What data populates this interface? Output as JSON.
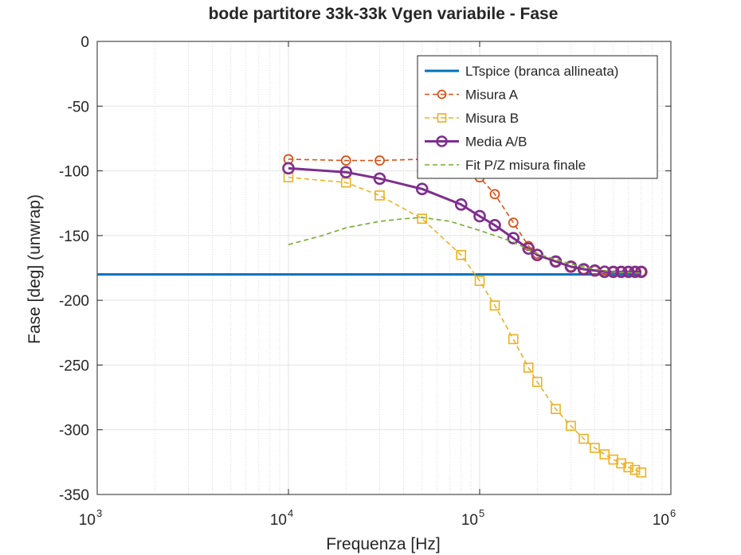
{
  "chart_data": {
    "type": "line",
    "title": "bode partitore 33k-33k Vgen variabile - Fase",
    "xlabel": "Frequenza [Hz]",
    "ylabel": "Fase [deg] (unwrap)",
    "xscale": "log",
    "xlim": [
      1000,
      1000000
    ],
    "ylim": [
      -350,
      0
    ],
    "yticks": [
      0,
      -50,
      -100,
      -150,
      -200,
      -250,
      -300,
      -350
    ],
    "ytick_labels": [
      "0",
      "-50",
      "-100",
      "-150",
      "-200",
      "-250",
      "-300",
      "-350"
    ],
    "xtick_labels": [
      {
        "base": "10",
        "exp": "3",
        "value": 1000
      },
      {
        "base": "10",
        "exp": "4",
        "value": 10000
      },
      {
        "base": "10",
        "exp": "5",
        "value": 100000
      },
      {
        "base": "10",
        "exp": "6",
        "value": 1000000
      }
    ],
    "grid": true,
    "minor_grid": true,
    "legend_position": "top-right",
    "series": [
      {
        "name": "LTspice (branca allineata)",
        "color": "#0072BD",
        "line_style": "solid",
        "marker": "none",
        "x": [
          1000,
          700000
        ],
        "y": [
          -180,
          -180
        ]
      },
      {
        "name": "Misura A",
        "color": "#D95319",
        "line_style": "dashed",
        "marker": "circle",
        "x": [
          10000,
          20000,
          30000,
          50000,
          80000,
          100000,
          120000,
          150000,
          180000,
          200000,
          250000,
          300000,
          350000,
          400000,
          450000,
          500000,
          550000,
          600000,
          650000,
          700000
        ],
        "y": [
          -91,
          -92,
          -92,
          -91,
          -96,
          -105,
          -118,
          -140,
          -158,
          -164,
          -170,
          -174,
          -176,
          -177,
          -177,
          -178,
          -178,
          -178,
          -178,
          -178
        ]
      },
      {
        "name": "Misura B",
        "color": "#EDB120",
        "line_style": "dashed",
        "marker": "square",
        "x": [
          10000,
          20000,
          30000,
          50000,
          80000,
          100000,
          120000,
          150000,
          180000,
          200000,
          250000,
          300000,
          350000,
          400000,
          450000,
          500000,
          550000,
          600000,
          650000,
          700000
        ],
        "y": [
          -105,
          -109,
          -119,
          -137,
          -165,
          -185,
          -204,
          -230,
          -252,
          -263,
          -284,
          -297,
          -307,
          -314,
          -319,
          -323,
          -326,
          -329,
          -331,
          -333
        ]
      },
      {
        "name": "Media A/B",
        "color": "#7E2F8E",
        "line_style": "solid",
        "marker": "circle",
        "x": [
          10000,
          20000,
          30000,
          50000,
          80000,
          100000,
          120000,
          150000,
          180000,
          200000,
          250000,
          300000,
          350000,
          400000,
          450000,
          500000,
          550000,
          600000,
          650000,
          700000
        ],
        "y": [
          -98,
          -101,
          -106,
          -114,
          -126,
          -135,
          -142,
          -152,
          -160,
          -165,
          -170,
          -174,
          -176,
          -177,
          -178,
          -178,
          -178,
          -178,
          -178,
          -178
        ]
      },
      {
        "name": "Fit P/Z misura finale",
        "color": "#77AC30",
        "line_style": "dashed",
        "marker": "none",
        "x": [
          10000,
          15000,
          20000,
          30000,
          40000,
          50000,
          70000,
          100000,
          150000,
          200000,
          300000,
          400000,
          500000,
          700000
        ],
        "y": [
          -157,
          -150,
          -144,
          -139,
          -137,
          -136,
          -139,
          -146,
          -155,
          -164,
          -172,
          -176,
          -178,
          -179
        ]
      }
    ]
  }
}
